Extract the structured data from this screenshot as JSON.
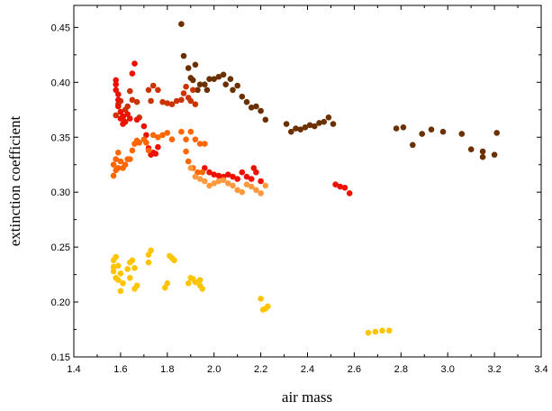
{
  "chart_data": {
    "type": "scatter",
    "title": "",
    "xlabel": "air mass",
    "ylabel": "extinction coefficient",
    "xlim": [
      1.4,
      3.4
    ],
    "ylim": [
      0.15,
      0.47
    ],
    "x_ticks": [
      "1.4",
      "1.6",
      "1.8",
      "2.0",
      "2.2",
      "2.4",
      "2.6",
      "2.8",
      "3.0",
      "3.2",
      "3.4"
    ],
    "y_ticks": [
      "0.15",
      "0.20",
      "0.25",
      "0.30",
      "0.35",
      "0.40",
      "0.45"
    ],
    "grid": false,
    "legend": "none",
    "series": [
      {
        "color": "#6b3000",
        "points": [
          [
            1.86,
            0.453
          ],
          [
            1.87,
            0.424
          ],
          [
            1.89,
            0.413
          ],
          [
            1.9,
            0.404
          ],
          [
            1.91,
            0.402
          ],
          [
            1.92,
            0.416
          ],
          [
            1.93,
            0.393
          ],
          [
            1.94,
            0.398
          ],
          [
            1.96,
            0.398
          ],
          [
            1.97,
            0.393
          ],
          [
            1.98,
            0.403
          ],
          [
            2.0,
            0.403
          ],
          [
            2.02,
            0.405
          ],
          [
            2.04,
            0.407
          ],
          [
            2.05,
            0.398
          ],
          [
            2.07,
            0.403
          ],
          [
            2.08,
            0.393
          ],
          [
            2.1,
            0.397
          ],
          [
            2.12,
            0.387
          ],
          [
            2.14,
            0.382
          ],
          [
            2.16,
            0.377
          ],
          [
            2.18,
            0.378
          ],
          [
            2.2,
            0.374
          ],
          [
            2.22,
            0.366
          ],
          [
            2.31,
            0.362
          ],
          [
            2.33,
            0.355
          ],
          [
            2.35,
            0.358
          ],
          [
            2.37,
            0.357
          ],
          [
            2.39,
            0.359
          ],
          [
            2.41,
            0.361
          ],
          [
            2.43,
            0.36
          ],
          [
            2.45,
            0.363
          ],
          [
            2.47,
            0.364
          ],
          [
            2.49,
            0.368
          ],
          [
            2.51,
            0.362
          ],
          [
            2.78,
            0.358
          ],
          [
            2.81,
            0.359
          ],
          [
            2.85,
            0.343
          ],
          [
            2.89,
            0.353
          ],
          [
            2.93,
            0.357
          ],
          [
            2.98,
            0.355
          ],
          [
            3.06,
            0.353
          ],
          [
            3.1,
            0.339
          ],
          [
            3.15,
            0.337
          ],
          [
            3.15,
            0.332
          ],
          [
            3.2,
            0.334
          ],
          [
            3.21,
            0.354
          ]
        ]
      },
      {
        "color": "#cc3300",
        "points": [
          [
            1.58,
            0.37
          ],
          [
            1.59,
            0.38
          ],
          [
            1.6,
            0.383
          ],
          [
            1.61,
            0.368
          ],
          [
            1.62,
            0.375
          ],
          [
            1.63,
            0.378
          ],
          [
            1.64,
            0.392
          ],
          [
            1.65,
            0.384
          ],
          [
            1.67,
            0.382
          ],
          [
            1.68,
            0.368
          ],
          [
            1.72,
            0.393
          ],
          [
            1.73,
            0.383
          ],
          [
            1.74,
            0.397
          ],
          [
            1.76,
            0.393
          ],
          [
            1.78,
            0.382
          ],
          [
            1.8,
            0.381
          ],
          [
            1.82,
            0.38
          ],
          [
            1.84,
            0.383
          ],
          [
            1.86,
            0.384
          ],
          [
            1.87,
            0.39
          ],
          [
            1.88,
            0.396
          ],
          [
            1.89,
            0.386
          ],
          [
            1.9,
            0.383
          ],
          [
            1.91,
            0.393
          ],
          [
            1.92,
            0.38
          ]
        ]
      },
      {
        "color": "#ee1100",
        "points": [
          [
            1.58,
            0.402
          ],
          [
            1.58,
            0.398
          ],
          [
            1.58,
            0.393
          ],
          [
            1.59,
            0.389
          ],
          [
            1.59,
            0.384
          ],
          [
            1.59,
            0.378
          ],
          [
            1.6,
            0.373
          ],
          [
            1.6,
            0.367
          ],
          [
            1.61,
            0.362
          ],
          [
            1.61,
            0.369
          ],
          [
            1.62,
            0.364
          ],
          [
            1.63,
            0.371
          ],
          [
            1.64,
            0.367
          ],
          [
            1.65,
            0.408
          ],
          [
            1.66,
            0.417
          ],
          [
            1.67,
            0.366
          ],
          [
            1.7,
            0.36
          ],
          [
            1.71,
            0.352
          ],
          [
            1.72,
            0.34
          ],
          [
            1.73,
            0.334
          ],
          [
            1.74,
            0.336
          ],
          [
            1.75,
            0.335
          ],
          [
            1.76,
            0.341
          ],
          [
            1.96,
            0.322
          ],
          [
            1.98,
            0.318
          ],
          [
            2.0,
            0.316
          ],
          [
            2.02,
            0.315
          ],
          [
            2.04,
            0.314
          ],
          [
            2.06,
            0.316
          ],
          [
            2.08,
            0.314
          ],
          [
            2.1,
            0.312
          ],
          [
            2.12,
            0.318
          ],
          [
            2.14,
            0.314
          ],
          [
            2.16,
            0.312
          ],
          [
            2.17,
            0.322
          ],
          [
            2.18,
            0.318
          ],
          [
            2.2,
            0.31
          ],
          [
            2.52,
            0.307
          ],
          [
            2.54,
            0.305
          ],
          [
            2.56,
            0.304
          ],
          [
            2.58,
            0.299
          ]
        ]
      },
      {
        "color": "#ff6600",
        "points": [
          [
            1.57,
            0.325
          ],
          [
            1.57,
            0.315
          ],
          [
            1.58,
            0.32
          ],
          [
            1.58,
            0.33
          ],
          [
            1.59,
            0.336
          ],
          [
            1.59,
            0.322
          ],
          [
            1.6,
            0.328
          ],
          [
            1.61,
            0.322
          ],
          [
            1.62,
            0.325
          ],
          [
            1.63,
            0.33
          ],
          [
            1.64,
            0.33
          ],
          [
            1.65,
            0.338
          ],
          [
            1.66,
            0.344
          ],
          [
            1.67,
            0.347
          ],
          [
            1.68,
            0.345
          ],
          [
            1.7,
            0.348
          ],
          [
            1.71,
            0.345
          ],
          [
            1.72,
            0.338
          ],
          [
            1.74,
            0.352
          ],
          [
            1.76,
            0.35
          ],
          [
            1.78,
            0.352
          ],
          [
            1.8,
            0.354
          ],
          [
            1.82,
            0.348
          ],
          [
            1.86,
            0.355
          ],
          [
            1.88,
            0.348
          ],
          [
            1.9,
            0.355
          ],
          [
            1.92,
            0.348
          ],
          [
            1.94,
            0.344
          ],
          [
            1.96,
            0.344
          ],
          [
            1.88,
            0.337
          ],
          [
            1.89,
            0.328
          ],
          [
            1.91,
            0.322
          ],
          [
            1.93,
            0.318
          ],
          [
            1.95,
            0.318
          ]
        ]
      },
      {
        "color": "#ff9940",
        "points": [
          [
            1.9,
            0.322
          ],
          [
            1.92,
            0.314
          ],
          [
            1.94,
            0.312
          ],
          [
            1.96,
            0.31
          ],
          [
            1.98,
            0.306
          ],
          [
            2.0,
            0.308
          ],
          [
            2.02,
            0.31
          ],
          [
            2.04,
            0.311
          ],
          [
            2.06,
            0.308
          ],
          [
            2.08,
            0.306
          ],
          [
            2.1,
            0.302
          ],
          [
            2.12,
            0.3
          ],
          [
            2.14,
            0.307
          ],
          [
            2.16,
            0.305
          ],
          [
            2.18,
            0.302
          ],
          [
            2.2,
            0.299
          ],
          [
            2.22,
            0.306
          ]
        ]
      },
      {
        "color": "#ffc400",
        "points": [
          [
            1.57,
            0.228
          ],
          [
            1.57,
            0.232
          ],
          [
            1.57,
            0.238
          ],
          [
            1.58,
            0.222
          ],
          [
            1.58,
            0.241
          ],
          [
            1.59,
            0.233
          ],
          [
            1.59,
            0.22
          ],
          [
            1.6,
            0.226
          ],
          [
            1.6,
            0.21
          ],
          [
            1.61,
            0.217
          ],
          [
            1.63,
            0.23
          ],
          [
            1.64,
            0.236
          ],
          [
            1.64,
            0.222
          ],
          [
            1.65,
            0.238
          ],
          [
            1.66,
            0.231
          ],
          [
            1.66,
            0.212
          ],
          [
            1.67,
            0.215
          ],
          [
            1.72,
            0.236
          ],
          [
            1.72,
            0.243
          ],
          [
            1.73,
            0.247
          ],
          [
            1.79,
            0.213
          ],
          [
            1.8,
            0.217
          ],
          [
            1.81,
            0.242
          ],
          [
            1.82,
            0.24
          ],
          [
            1.83,
            0.238
          ],
          [
            1.89,
            0.217
          ],
          [
            1.9,
            0.222
          ],
          [
            1.91,
            0.221
          ],
          [
            1.92,
            0.218
          ],
          [
            1.94,
            0.22
          ],
          [
            1.94,
            0.215
          ],
          [
            1.95,
            0.212
          ],
          [
            2.2,
            0.203
          ],
          [
            2.21,
            0.193
          ],
          [
            2.22,
            0.194
          ],
          [
            2.23,
            0.196
          ],
          [
            2.66,
            0.172
          ],
          [
            2.69,
            0.173
          ],
          [
            2.72,
            0.174
          ],
          [
            2.75,
            0.174
          ]
        ]
      }
    ]
  }
}
